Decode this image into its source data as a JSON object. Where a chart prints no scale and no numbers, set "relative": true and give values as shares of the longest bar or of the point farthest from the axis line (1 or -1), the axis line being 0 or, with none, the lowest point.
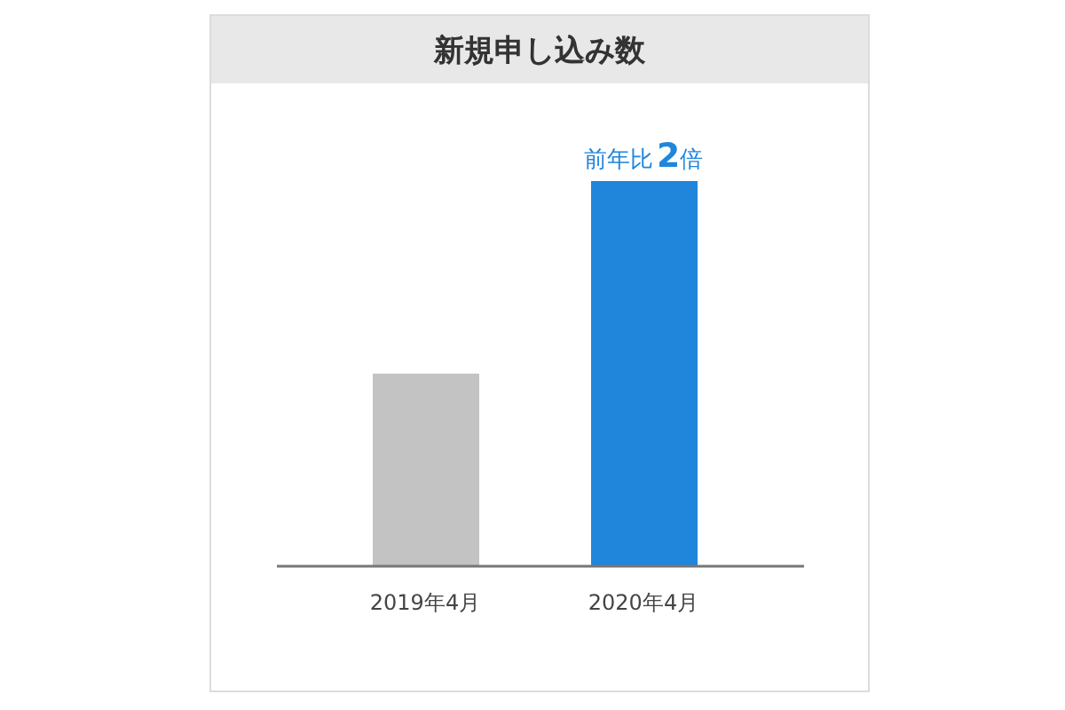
{
  "chart_data": {
    "type": "bar",
    "title": "新規申し込み数",
    "categories": [
      "2019年4月",
      "2020年4月"
    ],
    "values": [
      0.5,
      1
    ],
    "colors": [
      "#c3c3c3",
      "#2086dc"
    ],
    "relative": true,
    "annotations": [
      {
        "text": "前年比2倍",
        "x": "2020年4月",
        "y": 1
      }
    ]
  }
}
